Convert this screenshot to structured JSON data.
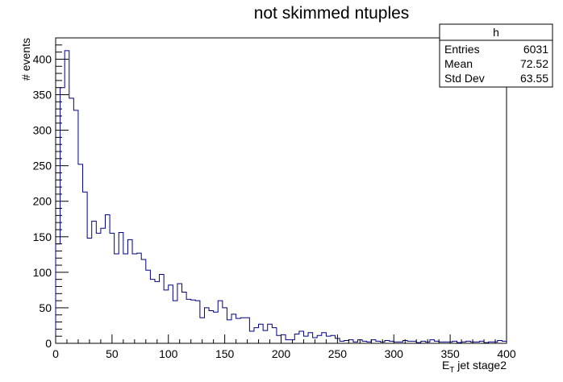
{
  "chart_data": {
    "type": "bar",
    "title": "not skimmed ntuples",
    "xlabel_main": "E",
    "xlabel_sub": "T",
    "xlabel_rest": " jet stage2",
    "ylabel": "# events",
    "xlim": [
      0,
      400
    ],
    "ylim": [
      0,
      430
    ],
    "bin_width": 4,
    "x_ticks": [
      0,
      50,
      100,
      150,
      200,
      250,
      300,
      350,
      400
    ],
    "y_ticks": [
      0,
      50,
      100,
      150,
      200,
      250,
      300,
      350,
      400
    ],
    "grid": false,
    "line_color": "#000080",
    "stats_box": {
      "name": "h",
      "placement": "top-right",
      "rows": [
        {
          "label": "Entries",
          "value": "6031"
        },
        {
          "label": "Mean",
          "value": "72.52"
        },
        {
          "label": "Std Dev",
          "value": "63.55"
        }
      ]
    },
    "values": [
      140,
      360,
      412,
      345,
      328,
      252,
      213,
      148,
      172,
      155,
      162,
      181,
      155,
      126,
      156,
      126,
      146,
      126,
      127,
      118,
      103,
      90,
      87,
      97,
      75,
      82,
      60,
      84,
      72,
      62,
      61,
      60,
      36,
      50,
      46,
      44,
      60,
      50,
      33,
      41,
      35,
      36,
      36,
      17,
      22,
      27,
      18,
      27,
      22,
      11,
      12,
      5,
      5,
      13,
      17,
      10,
      15,
      8,
      11,
      15,
      10,
      11,
      7,
      3,
      4,
      5,
      2,
      5,
      3,
      2,
      5,
      3,
      2,
      4,
      3,
      2,
      2,
      4,
      3,
      3,
      1,
      3,
      2,
      5,
      3,
      2,
      2,
      2,
      3,
      1,
      2,
      3,
      2,
      2,
      3,
      1,
      2,
      2,
      4,
      3
    ]
  }
}
